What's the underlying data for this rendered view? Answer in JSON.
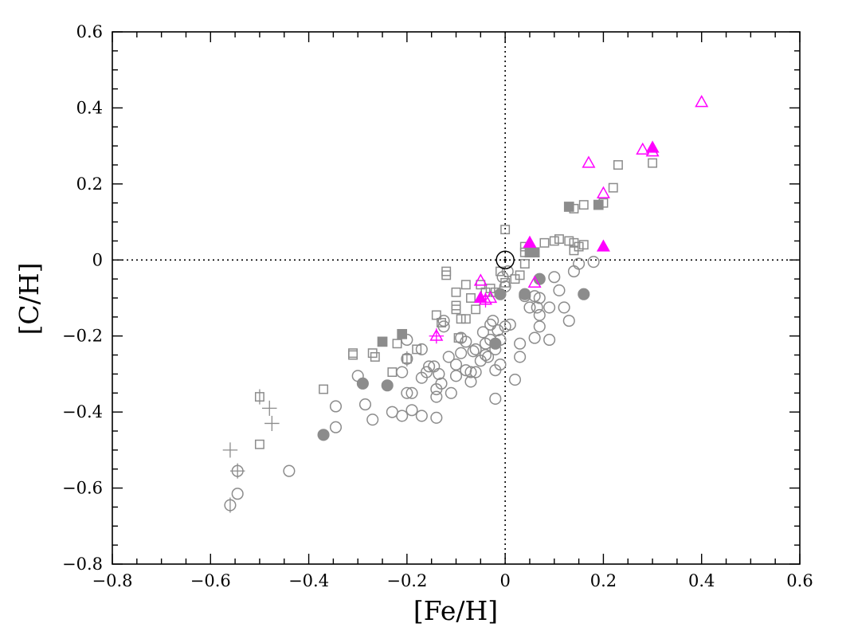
{
  "chart_data": {
    "type": "scatter",
    "xlabel": "[Fe/H]",
    "ylabel": "[C/H]",
    "xlim": [
      -0.8,
      0.6
    ],
    "ylim": [
      -0.8,
      0.6
    ],
    "x_ticks": [
      -0.8,
      -0.6,
      -0.4,
      -0.2,
      0,
      0.2,
      0.4,
      0.6
    ],
    "y_ticks": [
      -0.8,
      -0.6,
      -0.4,
      -0.2,
      0,
      0.2,
      0.4,
      0.6
    ],
    "x_tick_labels": [
      "−0.8",
      "−0.6",
      "−0.4",
      "−0.2",
      "0",
      "0.2",
      "0.4",
      "0.6"
    ],
    "y_tick_labels": [
      "−0.8",
      "−0.6",
      "−0.4",
      "−0.2",
      "0",
      "0.2",
      "0.4",
      "0.6"
    ],
    "reference_lines": {
      "x": 0,
      "y": 0,
      "style": "dotted"
    },
    "colors": {
      "gray": "#8c8c8c",
      "magenta": "#ff00ff",
      "black": "#000000"
    },
    "sun": {
      "x": 0.0,
      "y": 0.0
    },
    "series": [
      {
        "marker": "open-circle",
        "color": "#8c8c8c",
        "points": [
          [
            -0.56,
            -0.645
          ],
          [
            -0.545,
            -0.555
          ],
          [
            -0.545,
            -0.615
          ],
          [
            -0.44,
            -0.555
          ],
          [
            -0.345,
            -0.385
          ],
          [
            -0.345,
            -0.44
          ],
          [
            -0.3,
            -0.305
          ],
          [
            -0.285,
            -0.38
          ],
          [
            -0.27,
            -0.42
          ],
          [
            -0.23,
            -0.4
          ],
          [
            -0.21,
            -0.41
          ],
          [
            -0.2,
            -0.35
          ],
          [
            -0.19,
            -0.35
          ],
          [
            -0.19,
            -0.395
          ],
          [
            -0.21,
            -0.295
          ],
          [
            -0.2,
            -0.26
          ],
          [
            -0.2,
            -0.21
          ],
          [
            -0.17,
            -0.41
          ],
          [
            -0.17,
            -0.31
          ],
          [
            -0.17,
            -0.235
          ],
          [
            -0.16,
            -0.295
          ],
          [
            -0.155,
            -0.28
          ],
          [
            -0.145,
            -0.28
          ],
          [
            -0.14,
            -0.415
          ],
          [
            -0.14,
            -0.36
          ],
          [
            -0.14,
            -0.34
          ],
          [
            -0.135,
            -0.3
          ],
          [
            -0.13,
            -0.325
          ],
          [
            -0.125,
            -0.16
          ],
          [
            -0.125,
            -0.175
          ],
          [
            -0.11,
            -0.35
          ],
          [
            -0.115,
            -0.255
          ],
          [
            -0.1,
            -0.305
          ],
          [
            -0.1,
            -0.275
          ],
          [
            -0.09,
            -0.245
          ],
          [
            -0.09,
            -0.205
          ],
          [
            -0.08,
            -0.215
          ],
          [
            -0.08,
            -0.29
          ],
          [
            -0.07,
            -0.295
          ],
          [
            -0.07,
            -0.32
          ],
          [
            -0.065,
            -0.24
          ],
          [
            -0.06,
            -0.295
          ],
          [
            -0.06,
            -0.235
          ],
          [
            -0.05,
            -0.265
          ],
          [
            -0.045,
            -0.19
          ],
          [
            -0.04,
            -0.22
          ],
          [
            -0.04,
            -0.25
          ],
          [
            -0.035,
            -0.255
          ],
          [
            -0.03,
            -0.17
          ],
          [
            -0.03,
            -0.21
          ],
          [
            -0.025,
            -0.16
          ],
          [
            -0.02,
            -0.235
          ],
          [
            -0.02,
            -0.29
          ],
          [
            -0.02,
            -0.365
          ],
          [
            -0.015,
            -0.185
          ],
          [
            -0.01,
            -0.275
          ],
          [
            -0.01,
            -0.21
          ],
          [
            0.0,
            -0.175
          ],
          [
            0.01,
            -0.17
          ],
          [
            0.02,
            -0.315
          ],
          [
            0.03,
            -0.22
          ],
          [
            0.03,
            -0.255
          ],
          [
            0.04,
            -0.095
          ],
          [
            0.05,
            -0.125
          ],
          [
            0.06,
            -0.095
          ],
          [
            0.06,
            -0.205
          ],
          [
            0.065,
            -0.125
          ],
          [
            0.07,
            -0.1
          ],
          [
            0.07,
            -0.145
          ],
          [
            0.07,
            -0.175
          ],
          [
            0.09,
            -0.125
          ],
          [
            0.09,
            -0.21
          ],
          [
            0.1,
            -0.045
          ],
          [
            0.11,
            -0.08
          ],
          [
            0.12,
            -0.125
          ],
          [
            0.13,
            -0.16
          ],
          [
            0.14,
            -0.03
          ],
          [
            0.15,
            -0.01
          ],
          [
            0.18,
            -0.005
          ],
          [
            -0.005,
            -0.045
          ],
          [
            0.0,
            -0.07
          ],
          [
            0.005,
            -0.03
          ]
        ]
      },
      {
        "marker": "filled-circle",
        "color": "#8c8c8c",
        "points": [
          [
            -0.37,
            -0.46
          ],
          [
            -0.29,
            -0.325
          ],
          [
            -0.24,
            -0.33
          ],
          [
            -0.02,
            -0.22
          ],
          [
            -0.01,
            -0.09
          ],
          [
            0.04,
            -0.09
          ],
          [
            0.07,
            -0.05
          ],
          [
            0.16,
            -0.09
          ]
        ]
      },
      {
        "marker": "open-square",
        "color": "#8c8c8c",
        "points": [
          [
            -0.5,
            -0.36
          ],
          [
            -0.5,
            -0.485
          ],
          [
            -0.37,
            -0.34
          ],
          [
            -0.31,
            -0.245
          ],
          [
            -0.31,
            -0.25
          ],
          [
            -0.27,
            -0.245
          ],
          [
            -0.265,
            -0.255
          ],
          [
            -0.23,
            -0.295
          ],
          [
            -0.22,
            -0.22
          ],
          [
            -0.2,
            -0.26
          ],
          [
            -0.18,
            -0.235
          ],
          [
            -0.14,
            -0.145
          ],
          [
            -0.13,
            -0.165
          ],
          [
            -0.12,
            -0.03
          ],
          [
            -0.12,
            -0.04
          ],
          [
            -0.1,
            -0.085
          ],
          [
            -0.1,
            -0.12
          ],
          [
            -0.1,
            -0.13
          ],
          [
            -0.095,
            -0.205
          ],
          [
            -0.09,
            -0.155
          ],
          [
            -0.08,
            -0.065
          ],
          [
            -0.08,
            -0.155
          ],
          [
            -0.07,
            -0.1
          ],
          [
            -0.06,
            -0.13
          ],
          [
            -0.05,
            -0.065
          ],
          [
            -0.04,
            -0.085
          ],
          [
            -0.03,
            -0.075
          ],
          [
            -0.02,
            -0.085
          ],
          [
            -0.01,
            -0.03
          ],
          [
            0.0,
            0.08
          ],
          [
            0.0,
            -0.06
          ],
          [
            0.02,
            -0.05
          ],
          [
            0.03,
            -0.04
          ],
          [
            0.04,
            -0.01
          ],
          [
            0.04,
            0.02
          ],
          [
            0.04,
            0.035
          ],
          [
            0.08,
            0.045
          ],
          [
            0.1,
            0.05
          ],
          [
            0.11,
            0.055
          ],
          [
            0.13,
            0.05
          ],
          [
            0.14,
            0.045
          ],
          [
            0.14,
            0.025
          ],
          [
            0.15,
            0.035
          ],
          [
            0.16,
            0.04
          ],
          [
            0.14,
            0.135
          ],
          [
            0.16,
            0.145
          ],
          [
            0.2,
            0.15
          ],
          [
            0.22,
            0.19
          ],
          [
            0.23,
            0.25
          ],
          [
            0.3,
            0.255
          ]
        ]
      },
      {
        "marker": "filled-square",
        "color": "#8c8c8c",
        "points": [
          [
            -0.25,
            -0.215
          ],
          [
            -0.21,
            -0.195
          ],
          [
            0.05,
            0.02
          ],
          [
            0.06,
            0.02
          ],
          [
            0.13,
            0.14
          ],
          [
            0.19,
            0.145
          ]
        ]
      },
      {
        "marker": "open-triangle",
        "color": "#ff00ff",
        "points": [
          [
            -0.14,
            -0.2
          ],
          [
            -0.05,
            -0.055
          ],
          [
            -0.04,
            -0.105
          ],
          [
            -0.03,
            -0.1
          ],
          [
            0.06,
            -0.06
          ],
          [
            0.17,
            0.255
          ],
          [
            0.2,
            0.175
          ],
          [
            0.28,
            0.29
          ],
          [
            0.3,
            0.285
          ],
          [
            0.4,
            0.415
          ]
        ]
      },
      {
        "marker": "filled-triangle",
        "color": "#ff00ff",
        "points": [
          [
            -0.05,
            -0.1
          ],
          [
            0.05,
            0.045
          ],
          [
            0.2,
            0.035
          ],
          [
            0.3,
            0.295
          ]
        ]
      }
    ],
    "error_bars": [
      {
        "x": -0.56,
        "y": -0.5,
        "dx": 0.015,
        "dy": 0.02,
        "marker": "open-square",
        "color": "#8c8c8c"
      },
      {
        "x": -0.56,
        "y": -0.645,
        "dx": 0.0,
        "dy": 0.02,
        "marker": "none",
        "color": "#8c8c8c"
      },
      {
        "x": -0.545,
        "y": -0.555,
        "dx": 0.015,
        "dy": 0.02,
        "marker": "none",
        "color": "#8c8c8c"
      },
      {
        "x": -0.48,
        "y": -0.39,
        "dx": 0.015,
        "dy": 0.02,
        "marker": "open-square",
        "color": "#8c8c8c"
      },
      {
        "x": -0.475,
        "y": -0.43,
        "dx": 0.015,
        "dy": 0.02,
        "marker": "open-square",
        "color": "#8c8c8c"
      },
      {
        "x": -0.5,
        "y": -0.36,
        "dx": 0.0,
        "dy": 0.02,
        "marker": "none",
        "color": "#8c8c8c"
      },
      {
        "x": -0.2,
        "y": -0.26,
        "dx": 0.0,
        "dy": 0.02,
        "marker": "none",
        "color": "#8c8c8c"
      },
      {
        "x": -0.14,
        "y": -0.2,
        "dx": 0.015,
        "dy": 0.02,
        "marker": "none",
        "color": "#ff00ff"
      },
      {
        "x": -0.04,
        "y": -0.105,
        "dx": 0.0,
        "dy": 0.02,
        "marker": "none",
        "color": "#ff00ff"
      }
    ]
  }
}
